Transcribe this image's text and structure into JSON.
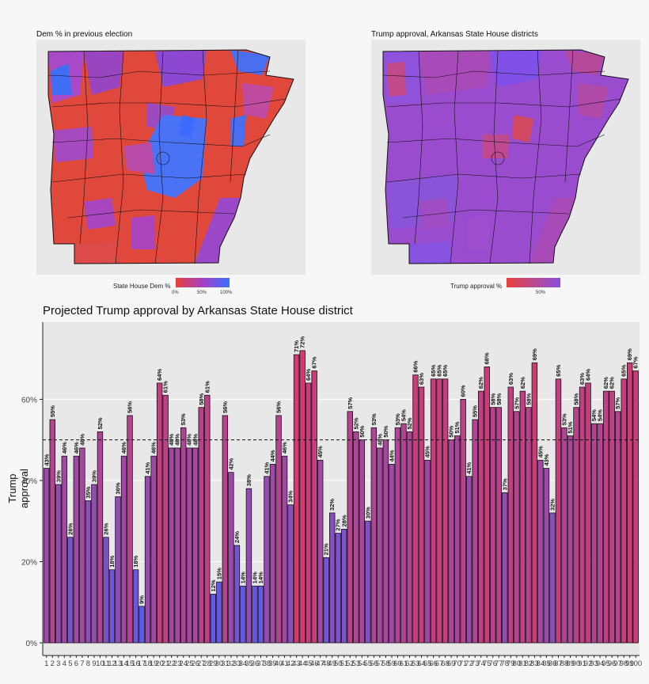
{
  "left_panel": {
    "title": "Dem % in previous election",
    "legend_title": "State House Dem %",
    "legend_ticks": [
      "0%",
      "50%",
      "100%"
    ],
    "colors": {
      "low": "#e8413a",
      "mid": "#a63fc4",
      "high": "#3a72ff"
    }
  },
  "right_panel": {
    "title": "Trump approval, Arkansas State House districts",
    "legend_title": "Trump approval %",
    "legend_ticks": [
      "50%"
    ],
    "colors": {
      "low": "#e8413a",
      "high": "#8a4fe0"
    }
  },
  "chart_data": {
    "type": "bar",
    "title": "Projected Trump approval by Arkansas State House district",
    "xlabel": "",
    "ylabel": "Trump approval",
    "ylim": [
      0,
      0.79
    ],
    "yticks": [
      "0%",
      "20%",
      "40%",
      "60%"
    ],
    "reference_line": 0.5,
    "colors": {
      "low": "#5a5cf0",
      "high": "#d43a70"
    },
    "categories": [
      "1",
      "2",
      "3",
      "4",
      "5",
      "6",
      "7",
      "8",
      "9",
      "10",
      "11",
      "12",
      "13",
      "14",
      "15",
      "16",
      "17",
      "18",
      "19",
      "20",
      "21",
      "22",
      "23",
      "24",
      "25",
      "26",
      "27",
      "28",
      "29",
      "30",
      "31",
      "32",
      "33",
      "34",
      "35",
      "36",
      "37",
      "38",
      "39",
      "40",
      "41",
      "42",
      "43",
      "44",
      "45",
      "46",
      "47",
      "48",
      "49",
      "50",
      "51",
      "52",
      "53",
      "54",
      "55",
      "56",
      "57",
      "58",
      "59",
      "60",
      "61",
      "62",
      "63",
      "64",
      "65",
      "66",
      "67",
      "68",
      "69",
      "70",
      "71",
      "72",
      "73",
      "74",
      "75",
      "76",
      "77",
      "78",
      "79",
      "80",
      "81",
      "82",
      "83",
      "84",
      "85",
      "86",
      "87",
      "88",
      "89",
      "90",
      "91",
      "92",
      "93",
      "94",
      "95",
      "96",
      "97",
      "98",
      "99",
      "100"
    ],
    "values": [
      0.43,
      0.55,
      0.39,
      0.46,
      0.26,
      0.46,
      0.48,
      0.35,
      0.39,
      0.52,
      0.26,
      0.18,
      0.36,
      0.46,
      0.56,
      0.18,
      0.09,
      0.41,
      0.46,
      0.64,
      0.61,
      0.48,
      0.48,
      0.53,
      0.48,
      0.48,
      0.58,
      0.61,
      0.12,
      0.15,
      0.56,
      0.42,
      0.24,
      0.14,
      0.38,
      0.14,
      0.14,
      0.41,
      0.44,
      0.56,
      0.46,
      0.34,
      0.71,
      0.72,
      0.64,
      0.67,
      0.45,
      0.21,
      0.32,
      0.27,
      0.28,
      0.57,
      0.52,
      0.5,
      0.3,
      0.53,
      0.48,
      0.5,
      0.44,
      0.53,
      0.54,
      0.52,
      0.66,
      0.63,
      0.45,
      0.65,
      0.65,
      0.65,
      0.5,
      0.51,
      0.6,
      0.41,
      0.55,
      0.62,
      0.68,
      0.58,
      0.58,
      0.37,
      0.63,
      0.57,
      0.62,
      0.58,
      0.69,
      0.45,
      0.43,
      0.32,
      0.65,
      0.53,
      0.51,
      0.58,
      0.63,
      0.64,
      0.54,
      0.54,
      0.62,
      0.62,
      0.57,
      0.65,
      0.69,
      0.67
    ],
    "data_labels": [
      "43%",
      "55%",
      "39%",
      "46%",
      "26%",
      "46%",
      "48%",
      "35%",
      "39%",
      "52%",
      "26%",
      "18%",
      "36%",
      "46%",
      "56%",
      "18%",
      "9%",
      "41%",
      "46%",
      "64%",
      "61%",
      "48%",
      "48%",
      "53%",
      "48%",
      "48%",
      "58%",
      "61%",
      "12%",
      "15%",
      "56%",
      "42%",
      "24%",
      "14%",
      "38%",
      "14%",
      "14%",
      "41%",
      "44%",
      "56%",
      "46%",
      "34%",
      "71%",
      "72%",
      "64%",
      "67%",
      "45%",
      "21%",
      "32%",
      "27%",
      "28%",
      "57%",
      "52%",
      "50%",
      "30%",
      "53%",
      "48%",
      "50%",
      "44%",
      "53%",
      "54%",
      "52%",
      "66%",
      "63%",
      "45%",
      "65%",
      "65%",
      "65%",
      "50%",
      "51%",
      "60%",
      "41%",
      "55%",
      "62%",
      "68%",
      "58%",
      "58%",
      "37%",
      "63%",
      "57%",
      "62%",
      "58%",
      "69%",
      "45%",
      "43%",
      "32%",
      "65%",
      "53%",
      "51%",
      "58%",
      "63%",
      "64%",
      "54%",
      "54%",
      "62%",
      "62%",
      "57%",
      "65%",
      "69%",
      "67%"
    ]
  }
}
